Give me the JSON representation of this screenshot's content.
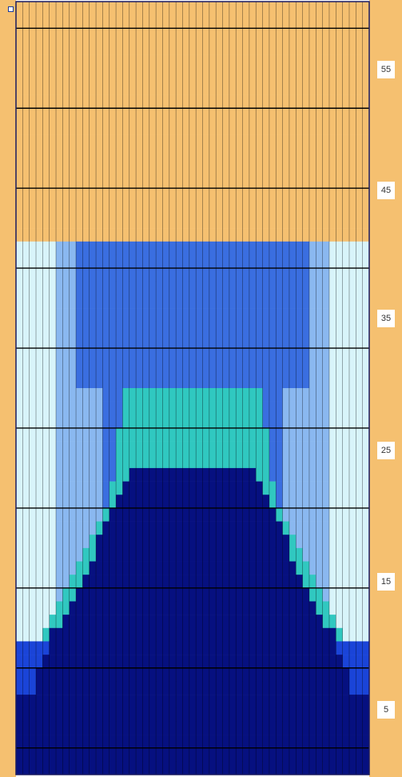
{
  "rows": 58,
  "columns": 53,
  "colors": {
    "background": "#f5c070",
    "pale_blue": "#d8f4fa",
    "light_blue": "#8ab8f0",
    "mid_blue": "#3a6ee0",
    "royal_blue": "#1a44d8",
    "navy": "#061080",
    "teal": "#30c8c0",
    "grid_line": "#000000",
    "frame": "#1a1a60"
  },
  "row_labels": [
    "55",
    "45",
    "35",
    "25",
    "15",
    "5"
  ],
  "icons": {
    "corner": "corner-square-icon"
  }
}
